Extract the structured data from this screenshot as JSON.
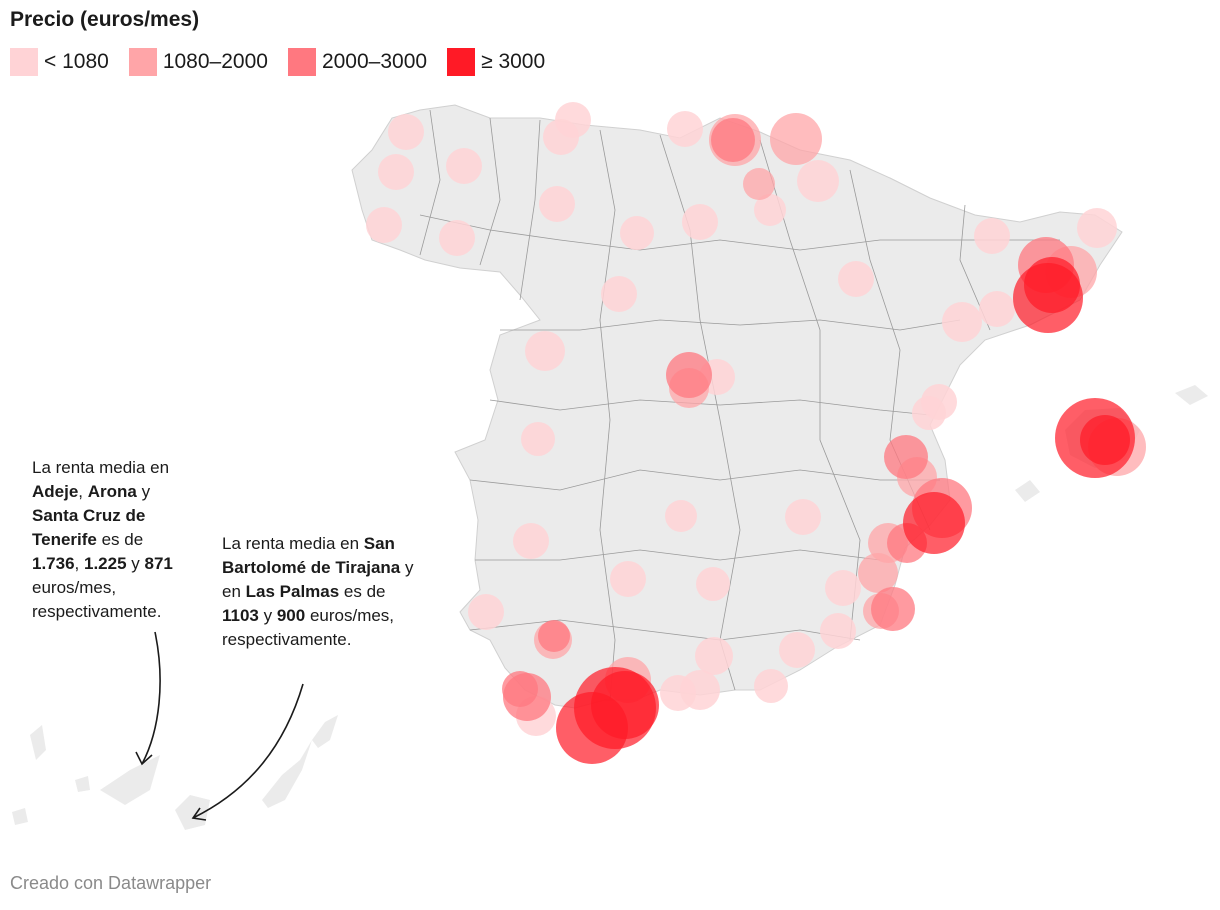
{
  "legend": {
    "title": "Precio (euros/mes)",
    "items": [
      {
        "label": "< 1080",
        "color": "#ffd3d6"
      },
      {
        "label": "1080–2000",
        "color": "#ffa5a8"
      },
      {
        "label": "2000–3000",
        "color": "#ff7880"
      },
      {
        "label": "≥ 3000",
        "color": "#ff1a26"
      }
    ]
  },
  "annotations": {
    "canarias_tenerife": {
      "p1": "La renta media en ",
      "m1": "Adeje",
      "p2": ", ",
      "m2": "Arona",
      "p3": " y ",
      "m3": "Santa Cruz de Tenerife",
      "p4": " es de ",
      "m4": "1.736",
      "p5": ", ",
      "m5": "1.225",
      "p6": " y ",
      "m6": "871",
      "p7": " euros/mes, respectivamente."
    },
    "canarias_gran_canaria": {
      "p1": "La renta media en ",
      "m1": "San Bartolomé de Tirajana",
      "p2": " y en ",
      "m2": "Las Palmas",
      "p3": " es de ",
      "m3": "1103",
      "p4": " y ",
      "m4": "900",
      "p5": " euros/mes, respectivamente."
    }
  },
  "credit": "Creado con Datawrapper"
}
